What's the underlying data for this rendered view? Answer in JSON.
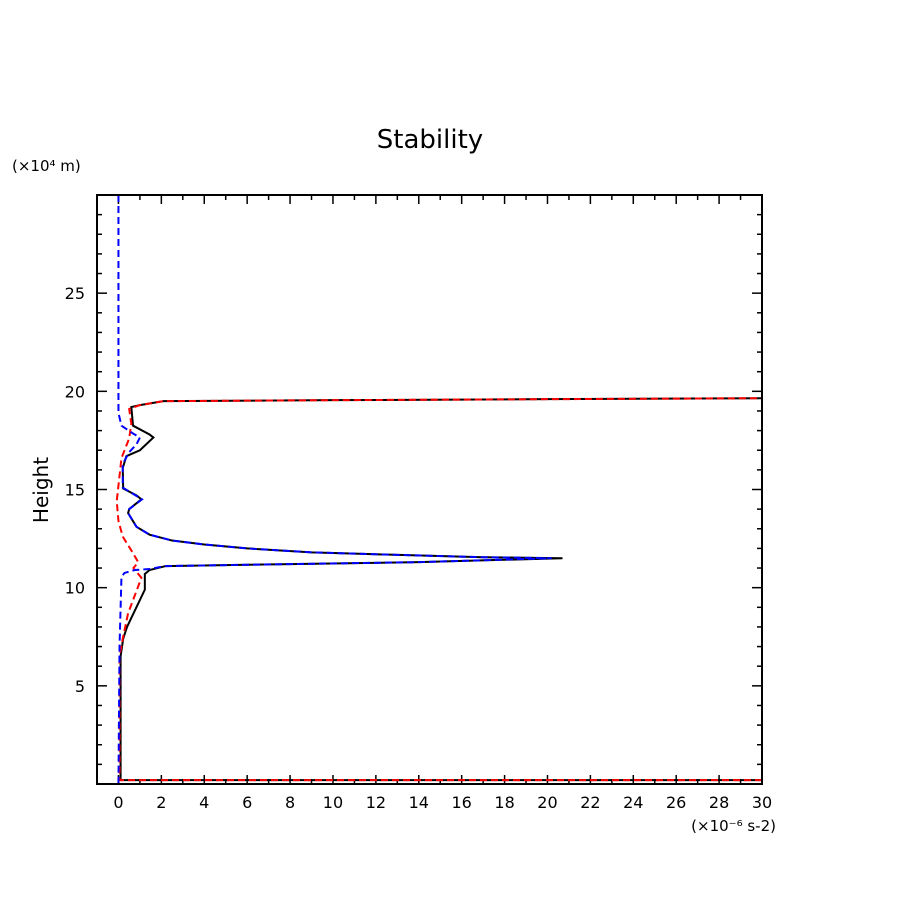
{
  "chart_data": {
    "type": "line",
    "title": "Stability",
    "xlabel": "",
    "ylabel": "Height",
    "x_unit": "(×10⁻⁶ s-2)",
    "y_unit": "(×10⁴ m)",
    "xlim": [
      -1,
      30
    ],
    "ylim": [
      0,
      30
    ],
    "xticks": [
      0,
      2,
      4,
      6,
      8,
      10,
      12,
      14,
      16,
      18,
      20,
      22,
      24,
      26,
      28,
      30
    ],
    "yticks": [
      5,
      10,
      15,
      20,
      25
    ],
    "grid": false,
    "series": [
      {
        "color": "#000000",
        "style": "solid",
        "points": [
          [
            30,
            0.2
          ],
          [
            0.1,
            0.2
          ],
          [
            0.1,
            6.5
          ],
          [
            0.22,
            7.4
          ],
          [
            0.4,
            8.0
          ],
          [
            1.23,
            9.9
          ],
          [
            1.23,
            10.7
          ],
          [
            1.45,
            10.9
          ],
          [
            2.2,
            11.1
          ],
          [
            8,
            11.2
          ],
          [
            14,
            11.3
          ],
          [
            20.7,
            11.5
          ],
          [
            17,
            11.55
          ],
          [
            12,
            11.7
          ],
          [
            9,
            11.8
          ],
          [
            6,
            12.0
          ],
          [
            4,
            12.2
          ],
          [
            2.5,
            12.4
          ],
          [
            1.45,
            12.7
          ],
          [
            0.84,
            13.1
          ],
          [
            0.45,
            13.8
          ],
          [
            0.5,
            14.0
          ],
          [
            1.07,
            14.5
          ],
          [
            0.84,
            14.7
          ],
          [
            0.22,
            15.05
          ],
          [
            0.2,
            16.1
          ],
          [
            0.37,
            16.7
          ],
          [
            1.0,
            17.0
          ],
          [
            1.63,
            17.65
          ],
          [
            1.45,
            17.8
          ],
          [
            0.68,
            18.25
          ],
          [
            0.6,
            19.2
          ],
          [
            1.0,
            19.3
          ],
          [
            2.1,
            19.5
          ],
          [
            10,
            19.55
          ],
          [
            20,
            19.6
          ],
          [
            30,
            19.65
          ]
        ]
      },
      {
        "color": "#ff0000",
        "style": "dashed",
        "points": [
          [
            30,
            0.2
          ],
          [
            0.05,
            0.2
          ],
          [
            0.05,
            6.5
          ],
          [
            0.2,
            7.4
          ],
          [
            0.45,
            8.7
          ],
          [
            1.07,
            10.5
          ],
          [
            0.7,
            11.0
          ],
          [
            0.92,
            11.3
          ],
          [
            0.6,
            11.9
          ],
          [
            0.2,
            12.6
          ],
          [
            0.0,
            13.4
          ],
          [
            -0.08,
            14.4
          ],
          [
            0.03,
            15.5
          ],
          [
            0.14,
            16.6
          ],
          [
            0.5,
            17.6
          ],
          [
            0.6,
            18.35
          ],
          [
            0.5,
            19.1
          ],
          [
            1.0,
            19.3
          ],
          [
            2.1,
            19.5
          ],
          [
            10,
            19.55
          ],
          [
            20,
            19.6
          ],
          [
            30,
            19.65
          ]
        ]
      },
      {
        "color": "#0000ff",
        "style": "dashed",
        "points": [
          [
            0,
            30
          ],
          [
            0,
            18.9
          ],
          [
            0.14,
            18.25
          ],
          [
            0.68,
            17.85
          ],
          [
            1.0,
            17.65
          ],
          [
            0.84,
            17.3
          ],
          [
            0.5,
            16.9
          ],
          [
            0.2,
            16.3
          ],
          [
            0.2,
            15.1
          ],
          [
            0.5,
            14.9
          ],
          [
            1.1,
            14.5
          ],
          [
            0.5,
            14.0
          ],
          [
            0.45,
            13.8
          ],
          [
            0.84,
            13.1
          ],
          [
            1.45,
            12.7
          ],
          [
            2.5,
            12.4
          ],
          [
            4,
            12.2
          ],
          [
            6,
            12.0
          ],
          [
            9,
            11.8
          ],
          [
            12,
            11.7
          ],
          [
            17,
            11.55
          ],
          [
            20.2,
            11.5
          ],
          [
            14,
            11.3
          ],
          [
            8,
            11.2
          ],
          [
            2.2,
            11.1
          ],
          [
            1.45,
            10.95
          ],
          [
            0.77,
            10.9
          ],
          [
            0.28,
            10.75
          ],
          [
            0.14,
            10.55
          ],
          [
            0.05,
            7
          ],
          [
            0,
            0
          ]
        ]
      }
    ]
  }
}
